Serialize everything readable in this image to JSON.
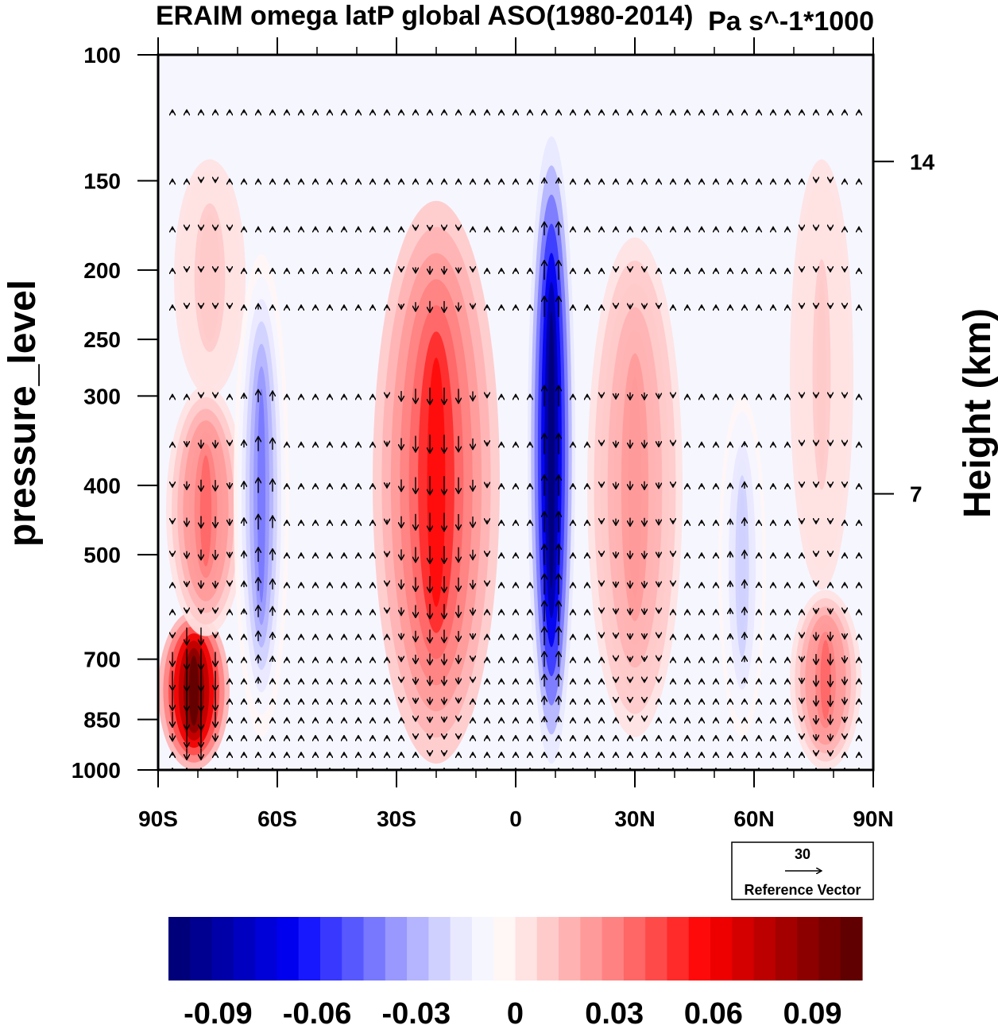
{
  "chart_data": {
    "type": "heatmap",
    "title": "ERAIM omega latP global ASO(1980-2014)",
    "units_label": "Pa s^-1*1000",
    "ylabel": "pressure_level",
    "ylabel_right": "Height (km)",
    "x_ticks": [
      "90S",
      "60S",
      "30S",
      "0",
      "30N",
      "60N",
      "90N"
    ],
    "x_tick_values": [
      -90,
      -60,
      -30,
      0,
      30,
      60,
      90
    ],
    "xlim": [
      -90,
      90
    ],
    "y_ticks": [
      "100",
      "150",
      "200",
      "250",
      "300",
      "400",
      "500",
      "700",
      "850",
      "1000"
    ],
    "y_tick_values": [
      100,
      150,
      200,
      250,
      300,
      400,
      500,
      700,
      850,
      1000
    ],
    "ylim": [
      1000,
      100
    ],
    "y_scale": "log",
    "right_ticks": [
      "14",
      "7"
    ],
    "right_tick_pressures": [
      141,
      411
    ],
    "reference_vector": {
      "value": "30",
      "label": "Reference Vector"
    },
    "colorbar": {
      "labels": [
        "-0.09",
        "-0.06",
        "-0.03",
        "0",
        "0.03",
        "0.06",
        "0.09"
      ],
      "label_values": [
        -0.09,
        -0.06,
        -0.03,
        0,
        0.03,
        0.06,
        0.09
      ],
      "range": [
        -0.105,
        0.105
      ],
      "colors": [
        "#00007a",
        "#000090",
        "#0000a8",
        "#0000c0",
        "#0000d8",
        "#0000ee",
        "#1818ff",
        "#3838ff",
        "#5858ff",
        "#7878ff",
        "#9898ff",
        "#b4b4ff",
        "#d0d0ff",
        "#e8e8ff",
        "#f6f6ff",
        "#fff6f6",
        "#ffe2e2",
        "#ffcaca",
        "#ffb2b2",
        "#ff9a9a",
        "#ff8282",
        "#ff6666",
        "#ff4a4a",
        "#ff2a2a",
        "#ff0a0a",
        "#ee0000",
        "#d40000",
        "#bc0000",
        "#a40000",
        "#8c0000",
        "#760000",
        "#600000"
      ]
    },
    "features": [
      {
        "lat": -81,
        "p_top": 600,
        "p_bottom": 1000,
        "width": 9,
        "value": 0.105
      },
      {
        "lat": -78,
        "p_top": 290,
        "p_bottom": 650,
        "width": 10,
        "value": 0.035
      },
      {
        "lat": -77,
        "p_top": 140,
        "p_bottom": 300,
        "width": 9,
        "value": 0.01
      },
      {
        "lat": -64,
        "p_top": 190,
        "p_bottom": 900,
        "width": 7,
        "value": -0.045
      },
      {
        "lat": -20,
        "p_top": 160,
        "p_bottom": 980,
        "width": 16,
        "value": 0.055
      },
      {
        "lat": 9,
        "p_top": 130,
        "p_bottom": 980,
        "width": 6,
        "value": -0.1
      },
      {
        "lat": 30,
        "p_top": 180,
        "p_bottom": 900,
        "width": 12,
        "value": 0.025
      },
      {
        "lat": 57,
        "p_top": 300,
        "p_bottom": 900,
        "width": 6,
        "value": -0.025
      },
      {
        "lat": 78,
        "p_top": 560,
        "p_bottom": 1000,
        "width": 9,
        "value": 0.035
      },
      {
        "lat": 77,
        "p_top": 140,
        "p_bottom": 560,
        "width": 8,
        "value": 0.008
      }
    ],
    "vectors": {
      "lat_step": 3.6,
      "pressures": [
        120,
        150,
        175,
        200,
        225,
        300,
        350,
        400,
        450,
        500,
        550,
        600,
        650,
        700,
        750,
        800,
        850,
        900,
        950,
        1000
      ]
    }
  }
}
